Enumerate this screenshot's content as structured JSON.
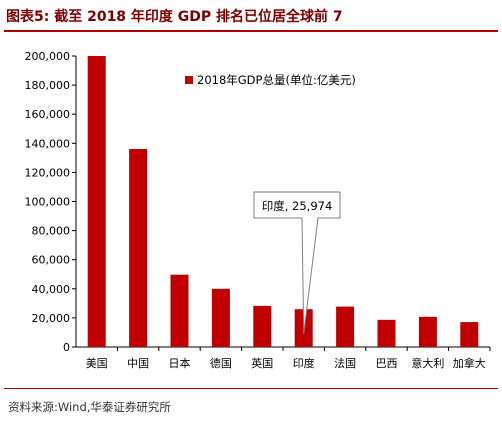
{
  "header": {
    "title": "图表5:  截至 2018 年印度 GDP 排名已位居全球前 7"
  },
  "footer": {
    "source": "资料来源:Wind,华泰证券研究所"
  },
  "chart_data": {
    "type": "bar",
    "categories": [
      "美国",
      "中国",
      "日本",
      "德国",
      "英国",
      "印度",
      "法国",
      "巴西",
      "意大利",
      "加拿大"
    ],
    "series": [
      {
        "name": "2018年GDP总量(单位:亿美元)",
        "values": [
          204940,
          136080,
          49710,
          40000,
          28250,
          25974,
          27770,
          18680,
          20740,
          17130
        ]
      }
    ],
    "ylim": [
      0,
      200000
    ],
    "yticks": [
      "0",
      "20,000",
      "40,000",
      "60,000",
      "80,000",
      "100,000",
      "120,000",
      "140,000",
      "160,000",
      "180,000",
      "200,000"
    ],
    "bar_color": "#c00000",
    "annotation": {
      "category": "印度",
      "text": "印度, 25,974"
    },
    "legend": "top-center",
    "grid": false
  }
}
